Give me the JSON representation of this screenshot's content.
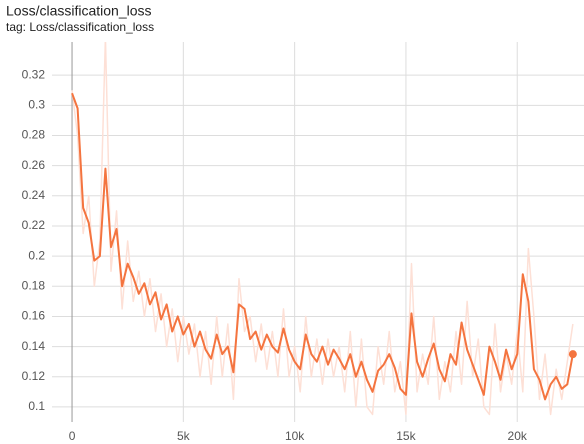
{
  "chart_data": {
    "type": "line",
    "title": "Loss/classification_loss",
    "subtitle": "tag: Loss/classification_loss",
    "x": [
      0,
      250,
      500,
      750,
      1000,
      1250,
      1500,
      1750,
      2000,
      2250,
      2500,
      2750,
      3000,
      3250,
      3500,
      3750,
      4000,
      4250,
      4500,
      4750,
      5000,
      5250,
      5500,
      5750,
      6000,
      6250,
      6500,
      6750,
      7000,
      7250,
      7500,
      7750,
      8000,
      8250,
      8500,
      8750,
      9000,
      9250,
      9500,
      9750,
      10000,
      10250,
      10500,
      10750,
      11000,
      11250,
      11500,
      11750,
      12000,
      12250,
      12500,
      12750,
      13000,
      13250,
      13500,
      13750,
      14000,
      14250,
      14500,
      14750,
      15000,
      15250,
      15500,
      15750,
      16000,
      16250,
      16500,
      16750,
      17000,
      17250,
      17500,
      17750,
      18000,
      18250,
      18500,
      18750,
      19000,
      19250,
      19500,
      19750,
      20000,
      20250,
      20500,
      20750,
      21000,
      21250,
      21500,
      21750,
      22000,
      22250,
      22500
    ],
    "series": [
      {
        "color": "#fde0d6",
        "values": [
          0.31,
          0.28,
          0.215,
          0.24,
          0.18,
          0.21,
          0.345,
          0.19,
          0.23,
          0.165,
          0.21,
          0.17,
          0.19,
          0.16,
          0.185,
          0.15,
          0.175,
          0.14,
          0.165,
          0.13,
          0.16,
          0.135,
          0.155,
          0.12,
          0.15,
          0.115,
          0.16,
          0.12,
          0.155,
          0.105,
          0.185,
          0.15,
          0.16,
          0.13,
          0.155,
          0.125,
          0.15,
          0.12,
          0.165,
          0.12,
          0.14,
          0.11,
          0.16,
          0.12,
          0.145,
          0.115,
          0.145,
          0.12,
          0.14,
          0.11,
          0.15,
          0.1,
          0.145,
          0.1,
          0.095,
          0.14,
          0.115,
          0.15,
          0.11,
          0.13,
          0.095,
          0.195,
          0.11,
          0.135,
          0.115,
          0.16,
          0.105,
          0.13,
          0.11,
          0.15,
          0.115,
          0.17,
          0.12,
          0.145,
          0.1,
          0.095,
          0.155,
          0.11,
          0.135,
          0.115,
          0.15,
          0.11,
          0.205,
          0.16,
          0.105,
          0.135,
          0.095,
          0.125,
          0.105,
          0.13,
          0.155
        ]
      },
      {
        "color": "#f4743f",
        "values": [
          0.308,
          0.298,
          0.232,
          0.222,
          0.197,
          0.2,
          0.258,
          0.206,
          0.218,
          0.18,
          0.195,
          0.186,
          0.175,
          0.182,
          0.168,
          0.176,
          0.158,
          0.168,
          0.15,
          0.16,
          0.148,
          0.155,
          0.14,
          0.15,
          0.138,
          0.132,
          0.148,
          0.135,
          0.14,
          0.123,
          0.168,
          0.165,
          0.145,
          0.15,
          0.138,
          0.148,
          0.14,
          0.136,
          0.152,
          0.138,
          0.13,
          0.125,
          0.148,
          0.135,
          0.13,
          0.14,
          0.128,
          0.138,
          0.132,
          0.125,
          0.135,
          0.12,
          0.13,
          0.118,
          0.11,
          0.124,
          0.128,
          0.135,
          0.126,
          0.112,
          0.108,
          0.162,
          0.13,
          0.12,
          0.132,
          0.142,
          0.125,
          0.117,
          0.135,
          0.128,
          0.156,
          0.138,
          0.128,
          0.118,
          0.108,
          0.14,
          0.13,
          0.118,
          0.138,
          0.125,
          0.135,
          0.188,
          0.17,
          0.125,
          0.118,
          0.105,
          0.115,
          0.12,
          0.112,
          0.115,
          0.135
        ]
      }
    ],
    "xlim": [
      -900,
      23000
    ],
    "ylim": [
      0.09,
      0.342
    ],
    "xticks": [
      0,
      {
        "value": 5000,
        "label": "5k"
      },
      {
        "value": 10000,
        "label": "10k"
      },
      {
        "value": 15000,
        "label": "15k"
      },
      {
        "value": 20000,
        "label": "20k"
      }
    ],
    "yticks": [
      0.1,
      0.12,
      0.14,
      0.16,
      0.18,
      0.2,
      0.22,
      0.24,
      0.26,
      0.28,
      0.3,
      0.32
    ],
    "grid": true
  }
}
